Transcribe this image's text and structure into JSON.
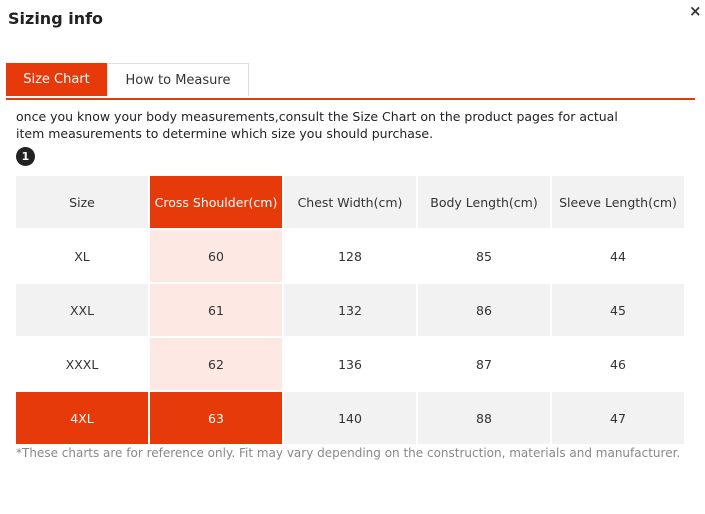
{
  "dialog": {
    "title": "Sizing info",
    "close_symbol": "×"
  },
  "tabs": [
    {
      "label": "Size Chart",
      "active": true
    },
    {
      "label": "How to Measure",
      "active": false
    }
  ],
  "intro": "once you know your body measurements,consult the Size Chart on the product pages for actual item measurements to determine which size you should purchase.",
  "step_badge": "1",
  "table": {
    "headers": [
      "Size",
      "Cross Shoulder(cm)",
      "Chest Width(cm)",
      "Body Length(cm)",
      "Sleeve Length(cm)"
    ],
    "rows": [
      [
        "XL",
        "60",
        "128",
        "85",
        "44"
      ],
      [
        "XXL",
        "61",
        "132",
        "86",
        "45"
      ],
      [
        "XXXL",
        "62",
        "136",
        "87",
        "46"
      ],
      [
        "4XL",
        "63",
        "140",
        "88",
        "47"
      ]
    ],
    "highlighted_column": 1,
    "highlighted_row": 3
  },
  "footnote": "*These charts are for reference only. Fit may vary depending on the construction, materials and manufacturer.",
  "colors": {
    "accent": "#e63a0a",
    "column_tint": "#fde8e4",
    "row_grey": "#f2f2f2"
  }
}
